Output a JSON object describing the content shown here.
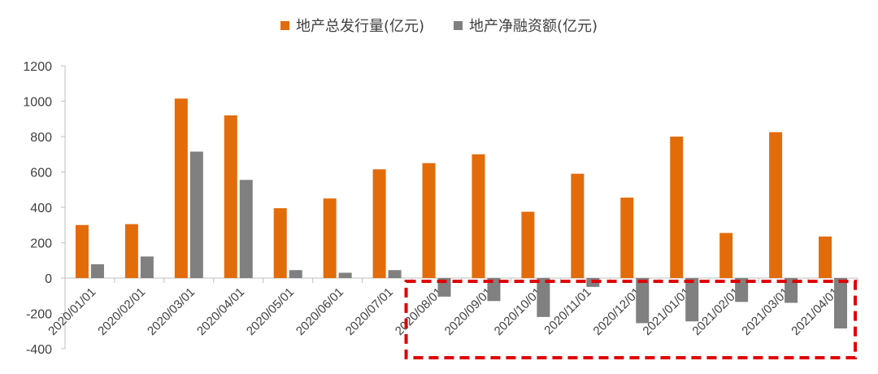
{
  "chart_data": {
    "type": "bar",
    "categories": [
      "2020/01/01",
      "2020/02/01",
      "2020/03/01",
      "2020/04/01",
      "2020/05/01",
      "2020/06/01",
      "2020/07/01",
      "2020/08/01",
      "2020/09/01",
      "2020/10/01",
      "2020/11/01",
      "2020/12/01",
      "2021/01/01",
      "2021/02/01",
      "2021/03/01",
      "2021/04/01"
    ],
    "series": [
      {
        "name": "地产总发行量(亿元)",
        "color": "#E36C0A",
        "values": [
          300,
          305,
          1015,
          920,
          395,
          450,
          615,
          650,
          700,
          375,
          590,
          455,
          800,
          255,
          825,
          235
        ]
      },
      {
        "name": "地产净融资额(亿元)",
        "color": "#808080",
        "values": [
          78,
          122,
          715,
          555,
          45,
          30,
          45,
          -105,
          -130,
          -220,
          -50,
          -255,
          -245,
          -135,
          -140,
          -285
        ]
      }
    ],
    "ylim": [
      -400,
      1200
    ],
    "yticks": [
      -400,
      -200,
      0,
      200,
      400,
      600,
      800,
      1000,
      1200
    ],
    "legend_position": "top-center",
    "grid": false,
    "highlight": {
      "from_category": "2020/08/01",
      "to_category": "2021/04/01",
      "color": "#E00000",
      "style": "dashed"
    }
  }
}
